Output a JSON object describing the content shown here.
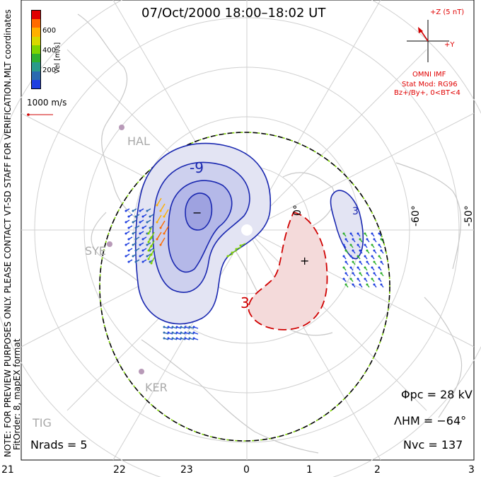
{
  "title": "07/Oct/2000 18:00–18:02 UT",
  "side_text": {
    "coords": "MLT coordinates",
    "note": "NOTE: FOR PREVIEW PURPOSES ONLY. PLEASE CONTACT VT-SD STAFF FOR VERIFICATION.",
    "fit": "FitOrder: 8, mapEX format"
  },
  "colorbar": {
    "label": "Vel [m/s]",
    "ticks": [
      "600",
      "400",
      "200"
    ],
    "colors": [
      "#e00000",
      "#ff6a00",
      "#ffb000",
      "#d8d800",
      "#7fd400",
      "#2fb02f",
      "#2a9a8a",
      "#2a6ab0",
      "#1f3fe0"
    ]
  },
  "scale_vector": "1000 m/s",
  "imf": {
    "z_label": "+Z (5 nT)",
    "y_label": "+Y",
    "source": "OMNI IMF",
    "model": "Stat Mod: RG96",
    "condition": "Bz+/By+, 0<BT<4"
  },
  "stations": [
    "HAL",
    "SYE",
    "KER",
    "TIG"
  ],
  "contour_labels": [
    "-9",
    "3",
    "3"
  ],
  "extremum_markers": [
    "−",
    "+"
  ],
  "lon_labels": [
    "0°",
    "-60°",
    "-50°"
  ],
  "stats": {
    "phi_pc": "Φpc = 28 kV",
    "lambda_hm": "ΛHM = −64°",
    "n_vc": "Nvc = 137",
    "n_rads": "Nrads = 5"
  },
  "mlt_ticks": [
    "21",
    "22",
    "23",
    "0",
    "1",
    "2",
    "3"
  ]
}
